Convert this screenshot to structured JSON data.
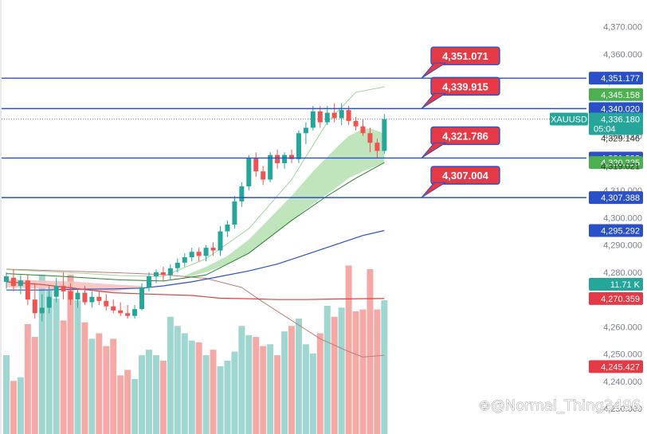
{
  "chart_data": {
    "type": "candlestick",
    "symbol": "XAUUSD",
    "countdown": "05:04",
    "ylim": [
      4228,
      4374
    ],
    "y_ticks": [
      4230,
      4240,
      4250,
      4260,
      4270,
      4280,
      4290,
      4300,
      4310,
      4320,
      4330,
      4340,
      4350,
      4360,
      4370
    ],
    "y_tick_labels": [
      "4,230.000",
      "4,240.000",
      "4,250.000",
      "4,260.000",
      "4,270.000",
      "4,280.000",
      "4,290.000",
      "4,300.000",
      "4,310.000",
      "4,320.000",
      "4,330.000",
      "4,340.000",
      "4,350.000",
      "4,360.000",
      "4,370.000"
    ],
    "last_price": 4336.18,
    "colors": {
      "up": "#26a69a",
      "down": "#ef5350",
      "vol_up": "#9fd6d0",
      "vol_down": "#f4a9a7",
      "level_line": "#2a50c8",
      "callout": "#e53946",
      "ribbon_fill": "#b9e2b6"
    },
    "candles": [
      {
        "o": 4276.5,
        "h": 4280,
        "l": 4274,
        "c": 4278.5
      },
      {
        "o": 4278,
        "h": 4281,
        "l": 4273,
        "c": 4275
      },
      {
        "o": 4275,
        "h": 4279,
        "l": 4272,
        "c": 4277
      },
      {
        "o": 4277,
        "h": 4279,
        "l": 4268,
        "c": 4270
      },
      {
        "o": 4270,
        "h": 4276,
        "l": 4263,
        "c": 4265
      },
      {
        "o": 4265,
        "h": 4272,
        "l": 4262,
        "c": 4267
      },
      {
        "o": 4267,
        "h": 4275,
        "l": 4265,
        "c": 4271
      },
      {
        "o": 4271,
        "h": 4278,
        "l": 4269,
        "c": 4275
      },
      {
        "o": 4275,
        "h": 4280,
        "l": 4270,
        "c": 4273
      },
      {
        "o": 4273,
        "h": 4276,
        "l": 4268,
        "c": 4270
      },
      {
        "o": 4270,
        "h": 4274,
        "l": 4267,
        "c": 4272.5
      },
      {
        "o": 4272.5,
        "h": 4275,
        "l": 4268,
        "c": 4269
      },
      {
        "o": 4269,
        "h": 4273,
        "l": 4267,
        "c": 4271
      },
      {
        "o": 4271,
        "h": 4273,
        "l": 4268,
        "c": 4269.5
      },
      {
        "o": 4269.5,
        "h": 4272,
        "l": 4266,
        "c": 4267.5
      },
      {
        "o": 4267.5,
        "h": 4270,
        "l": 4265,
        "c": 4266
      },
      {
        "o": 4266,
        "h": 4269,
        "l": 4264,
        "c": 4265
      },
      {
        "o": 4265,
        "h": 4268,
        "l": 4263,
        "c": 4264
      },
      {
        "o": 4264,
        "h": 4268,
        "l": 4263,
        "c": 4266.5
      },
      {
        "o": 4266.5,
        "h": 4276,
        "l": 4266,
        "c": 4274.5
      },
      {
        "o": 4274.5,
        "h": 4280,
        "l": 4273,
        "c": 4278.5
      },
      {
        "o": 4278.5,
        "h": 4281,
        "l": 4276,
        "c": 4280
      },
      {
        "o": 4280,
        "h": 4282,
        "l": 4277,
        "c": 4279
      },
      {
        "o": 4279,
        "h": 4283,
        "l": 4277,
        "c": 4281.5
      },
      {
        "o": 4281.5,
        "h": 4285,
        "l": 4280,
        "c": 4283.5
      },
      {
        "o": 4283.5,
        "h": 4287,
        "l": 4282,
        "c": 4285.5
      },
      {
        "o": 4285.5,
        "h": 4289,
        "l": 4284,
        "c": 4287.5
      },
      {
        "o": 4287.5,
        "h": 4289,
        "l": 4284,
        "c": 4286
      },
      {
        "o": 4286,
        "h": 4290,
        "l": 4284,
        "c": 4289
      },
      {
        "o": 4289,
        "h": 4291,
        "l": 4286,
        "c": 4288
      },
      {
        "o": 4288,
        "h": 4297,
        "l": 4286,
        "c": 4295
      },
      {
        "o": 4295,
        "h": 4299,
        "l": 4293,
        "c": 4297.5
      },
      {
        "o": 4297.5,
        "h": 4308,
        "l": 4296,
        "c": 4306
      },
      {
        "o": 4306,
        "h": 4313,
        "l": 4304,
        "c": 4311.5
      },
      {
        "o": 4311.5,
        "h": 4323,
        "l": 4310,
        "c": 4322
      },
      {
        "o": 4322,
        "h": 4324,
        "l": 4315,
        "c": 4317
      },
      {
        "o": 4317,
        "h": 4319,
        "l": 4312,
        "c": 4314
      },
      {
        "o": 4314,
        "h": 4324,
        "l": 4313,
        "c": 4323
      },
      {
        "o": 4323,
        "h": 4325,
        "l": 4318,
        "c": 4320
      },
      {
        "o": 4320,
        "h": 4324,
        "l": 4318,
        "c": 4323
      },
      {
        "o": 4323,
        "h": 4325,
        "l": 4320,
        "c": 4321.5
      },
      {
        "o": 4321.5,
        "h": 4332,
        "l": 4320,
        "c": 4331
      },
      {
        "o": 4331,
        "h": 4335,
        "l": 4327,
        "c": 4333
      },
      {
        "o": 4333,
        "h": 4341,
        "l": 4332,
        "c": 4339
      },
      {
        "o": 4339,
        "h": 4341,
        "l": 4333,
        "c": 4335
      },
      {
        "o": 4335,
        "h": 4341,
        "l": 4334,
        "c": 4338.5
      },
      {
        "o": 4338.5,
        "h": 4342,
        "l": 4335,
        "c": 4336.5
      },
      {
        "o": 4336.5,
        "h": 4342,
        "l": 4334,
        "c": 4339.5
      },
      {
        "o": 4339.5,
        "h": 4341,
        "l": 4334,
        "c": 4335.5
      },
      {
        "o": 4335.5,
        "h": 4337,
        "l": 4332,
        "c": 4333.5
      },
      {
        "o": 4333.5,
        "h": 4336,
        "l": 4330,
        "c": 4331
      },
      {
        "o": 4331,
        "h": 4333,
        "l": 4324,
        "c": 4327.5
      },
      {
        "o": 4327.5,
        "h": 4329,
        "l": 4322,
        "c": 4324.5
      },
      {
        "o": 4324.5,
        "h": 4338,
        "l": 4323.5,
        "c": 4336.18
      }
    ],
    "volumes": [
      0.43,
      0.29,
      0.31,
      0.6,
      0.53,
      0.87,
      0.79,
      0.74,
      0.62,
      0.87,
      0.73,
      0.61,
      0.52,
      0.55,
      0.48,
      0.52,
      0.32,
      0.35,
      0.3,
      0.43,
      0.46,
      0.43,
      0.4,
      0.64,
      0.59,
      0.55,
      0.51,
      0.5,
      0.43,
      0.46,
      0.37,
      0.4,
      0.45,
      0.59,
      0.54,
      0.53,
      0.48,
      0.49,
      0.43,
      0.56,
      0.59,
      0.63,
      0.49,
      0.44,
      0.55,
      0.7,
      0.64,
      0.69,
      0.92,
      0.67,
      0.68,
      0.9,
      0.68,
      0.73
    ],
    "levels": [
      {
        "value": 4351.177,
        "label": "4,351.177",
        "callout": "4,351.071"
      },
      {
        "value": 4340.02,
        "label": "4,340.020",
        "callout": "4,339.915"
      },
      {
        "value": 4321.892,
        "label": "4,321.892",
        "callout": "4,321.786"
      },
      {
        "value": 4307.388,
        "label": "4,307.388",
        "callout": "4,307.004"
      }
    ],
    "price_tags": [
      {
        "value": 4345.158,
        "label": "4,345.158",
        "color": "#4caf50"
      },
      {
        "value": 4320.225,
        "label": "4,320.225",
        "color": "#4caf50"
      },
      {
        "value": 4295.292,
        "label": "4,295.292",
        "color": "#2a50c8"
      },
      {
        "value": 4270.359,
        "label": "4,270.359",
        "color": "#e53946"
      },
      {
        "value": 4245.427,
        "label": "4,245.427",
        "color": "#e53946"
      },
      {
        "value": 4275.6,
        "label": "11.71 K",
        "color": "#26a69a"
      }
    ],
    "plain_labels": [
      {
        "value": 4329.146,
        "label": "4,329.146"
      },
      {
        "value": 4319.021,
        "label": "4,319.021"
      }
    ],
    "blue_ma": [
      [
        0,
        4273.5
      ],
      [
        5,
        4273.5
      ],
      [
        10,
        4273.8
      ],
      [
        15,
        4273.9
      ],
      [
        19,
        4274.2
      ],
      [
        22,
        4275
      ],
      [
        26,
        4276.5
      ],
      [
        30,
        4278.5
      ],
      [
        34,
        4280.5
      ],
      [
        38,
        4283
      ],
      [
        42,
        4286.5
      ],
      [
        46,
        4290
      ],
      [
        50,
        4293.5
      ],
      [
        53,
        4295.3
      ]
    ],
    "red_ma_price": [
      [
        0,
        4276.5
      ],
      [
        5,
        4275.5
      ],
      [
        10,
        4274
      ],
      [
        15,
        4272.5
      ],
      [
        20,
        4272
      ],
      [
        26,
        4271.5
      ],
      [
        30,
        4270.5
      ],
      [
        34,
        4270.3
      ],
      [
        38,
        4270
      ],
      [
        42,
        4270
      ],
      [
        46,
        4270.2
      ],
      [
        50,
        4270.3
      ],
      [
        53,
        4270.36
      ]
    ],
    "red_ma_vol": [
      [
        0,
        0.9
      ],
      [
        8,
        0.89
      ],
      [
        16,
        0.88
      ],
      [
        22,
        0.87
      ],
      [
        28,
        0.85
      ],
      [
        33,
        0.8
      ],
      [
        36,
        0.72
      ],
      [
        40,
        0.62
      ],
      [
        44,
        0.52
      ],
      [
        48,
        0.45
      ],
      [
        50,
        0.42
      ],
      [
        53,
        0.43
      ]
    ],
    "ribbon_upper": [
      [
        25,
        4278.8
      ],
      [
        28,
        4282
      ],
      [
        31,
        4286
      ],
      [
        34,
        4292
      ],
      [
        37,
        4300
      ],
      [
        40,
        4308
      ],
      [
        43,
        4317
      ],
      [
        46,
        4325
      ],
      [
        48,
        4330
      ],
      [
        50,
        4332.5
      ],
      [
        51,
        4332.8
      ],
      [
        53,
        4330.8
      ]
    ],
    "ribbon_lower": [
      [
        25,
        4278
      ],
      [
        28,
        4280
      ],
      [
        31,
        4283
      ],
      [
        34,
        4287
      ],
      [
        37,
        4293
      ],
      [
        40,
        4299
      ],
      [
        43,
        4305
      ],
      [
        46,
        4310.5
      ],
      [
        48,
        4314.5
      ],
      [
        50,
        4317
      ],
      [
        51,
        4318
      ],
      [
        53,
        4320.2
      ]
    ],
    "left_upper": [
      [
        0,
        4277.5
      ],
      [
        5,
        4277
      ],
      [
        10,
        4276.5
      ],
      [
        15,
        4275.5
      ],
      [
        19,
        4275
      ]
    ],
    "left_lower": [
      [
        0,
        4274.5
      ],
      [
        5,
        4274
      ],
      [
        10,
        4273.5
      ],
      [
        15,
        4273
      ],
      [
        19,
        4274.5
      ]
    ],
    "light_green_ma": [
      [
        0,
        4281
      ],
      [
        8,
        4280
      ],
      [
        16,
        4278.8
      ],
      [
        22,
        4278.5
      ],
      [
        28,
        4285
      ],
      [
        34,
        4296
      ],
      [
        40,
        4314
      ],
      [
        45,
        4335
      ],
      [
        49,
        4346
      ],
      [
        53,
        4348
      ]
    ],
    "green_ma": [
      [
        0,
        4279.5
      ],
      [
        8,
        4278.5
      ],
      [
        16,
        4277.2
      ],
      [
        22,
        4276.8
      ],
      [
        28,
        4279
      ],
      [
        34,
        4287
      ],
      [
        40,
        4299
      ],
      [
        45,
        4308
      ],
      [
        49,
        4314.5
      ],
      [
        53,
        4320.2
      ]
    ],
    "watermark": "⊕@Normal_Thing3496"
  }
}
